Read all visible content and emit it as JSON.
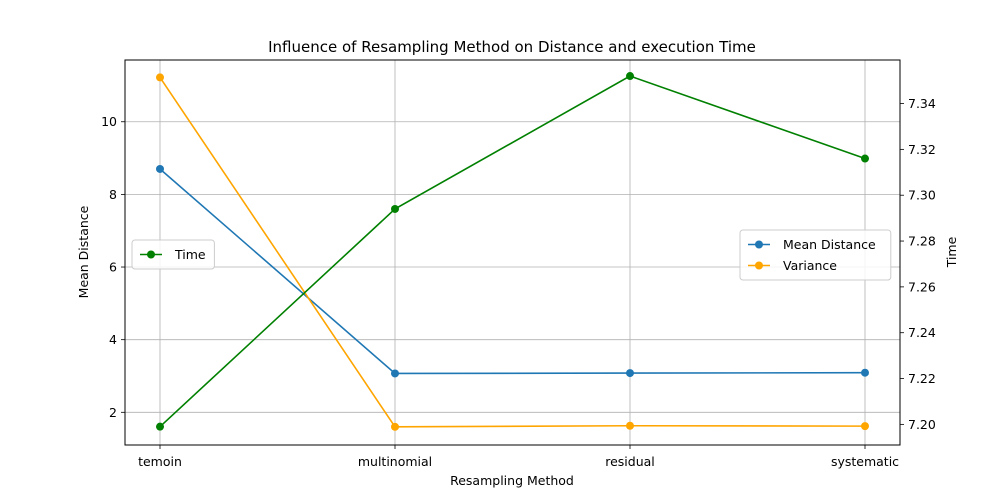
{
  "chart_data": {
    "type": "line",
    "title": "Influence of Resampling Method on Distance and execution Time",
    "xlabel": "Resampling Method",
    "ylabel_left": "Mean Distance",
    "ylabel_right": "Time",
    "categories": [
      "temoin",
      "multinomial",
      "residual",
      "systematic"
    ],
    "ylim_left": [
      1.1,
      11.7
    ],
    "ylim_right": [
      7.191,
      7.359
    ],
    "yticks_left": [
      2,
      4,
      6,
      8,
      10
    ],
    "yticks_right": [
      7.2,
      7.22,
      7.24,
      7.26,
      7.28,
      7.3,
      7.32,
      7.34
    ],
    "yticks_right_labels": [
      "7.20",
      "7.22",
      "7.24",
      "7.26",
      "7.28",
      "7.30",
      "7.32",
      "7.34"
    ],
    "grid": true,
    "series": [
      {
        "name": "Mean Distance",
        "axis": "left",
        "color": "#1f77b4",
        "values": [
          8.7,
          3.07,
          3.08,
          3.09
        ]
      },
      {
        "name": "Variance",
        "axis": "left",
        "color": "#ffa500",
        "values": [
          11.22,
          1.6,
          1.63,
          1.62
        ]
      },
      {
        "name": "Time",
        "axis": "right",
        "color": "#008000",
        "values": [
          7.199,
          7.294,
          7.352,
          7.316
        ]
      }
    ],
    "legends": [
      {
        "placement": "center-left",
        "entries": [
          "Time"
        ]
      },
      {
        "placement": "center-right",
        "entries": [
          "Mean Distance",
          "Variance"
        ]
      }
    ]
  }
}
